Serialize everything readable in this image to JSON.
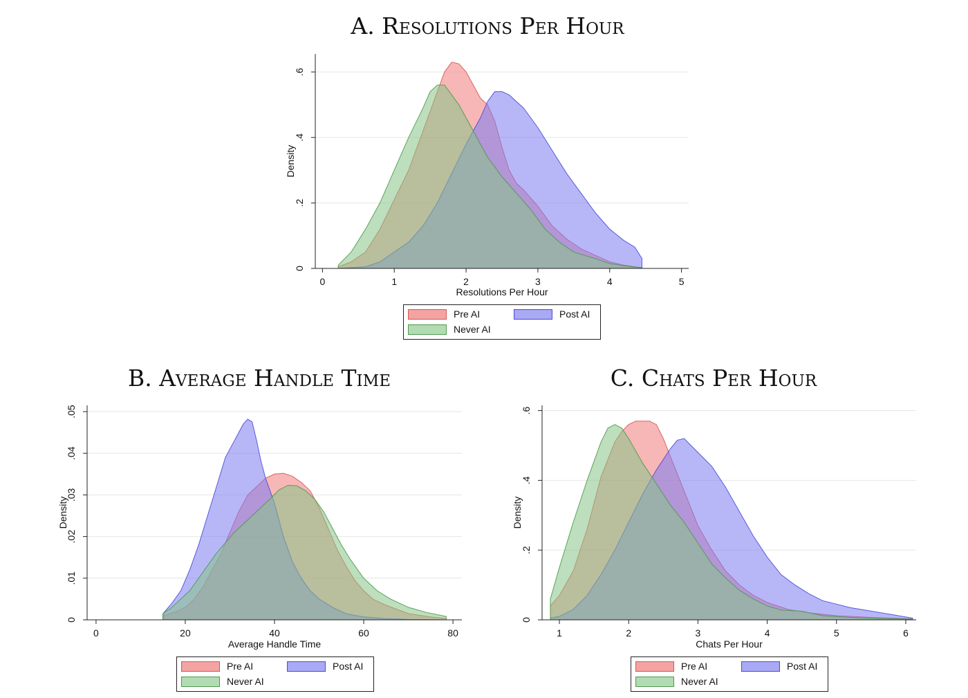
{
  "chart_data": [
    {
      "id": "A",
      "type": "area",
      "title": "A. Resolutions Per Hour",
      "xlabel": "Resolutions Per Hour",
      "ylabel": "Density",
      "xlim": [
        -0.1,
        5.1
      ],
      "ylim": [
        0,
        0.655
      ],
      "xticks": [
        0,
        1,
        2,
        3,
        4,
        5
      ],
      "xtick_labels": [
        "0",
        "1",
        "2",
        "3",
        "4",
        "5"
      ],
      "yticks": [
        0,
        0.2,
        0.4,
        0.6
      ],
      "ytick_labels": [
        "0",
        ".2",
        ".4",
        ".6"
      ],
      "grid": true,
      "legend": [
        "Pre AI",
        "Post AI",
        "Never AI"
      ],
      "legend_position": "bottom",
      "series": [
        {
          "name": "Pre AI",
          "color": "#f07c7c",
          "stroke": "#d9534f",
          "points": [
            [
              0.22,
              0.005
            ],
            [
              0.4,
              0.02
            ],
            [
              0.6,
              0.05
            ],
            [
              0.8,
              0.12
            ],
            [
              1.0,
              0.21
            ],
            [
              1.2,
              0.3
            ],
            [
              1.4,
              0.42
            ],
            [
              1.6,
              0.54
            ],
            [
              1.7,
              0.6
            ],
            [
              1.8,
              0.63
            ],
            [
              1.9,
              0.625
            ],
            [
              2.0,
              0.6
            ],
            [
              2.1,
              0.56
            ],
            [
              2.2,
              0.52
            ],
            [
              2.3,
              0.5
            ],
            [
              2.4,
              0.45
            ],
            [
              2.5,
              0.37
            ],
            [
              2.6,
              0.3
            ],
            [
              2.7,
              0.26
            ],
            [
              2.8,
              0.24
            ],
            [
              3.0,
              0.19
            ],
            [
              3.2,
              0.13
            ],
            [
              3.4,
              0.09
            ],
            [
              3.6,
              0.06
            ],
            [
              3.8,
              0.04
            ],
            [
              4.0,
              0.02
            ],
            [
              4.2,
              0.01
            ],
            [
              4.45,
              0.002
            ]
          ]
        },
        {
          "name": "Post AI",
          "color": "#7b7bf2",
          "stroke": "#4a4ad6",
          "points": [
            [
              0.22,
              0.0
            ],
            [
              0.6,
              0.005
            ],
            [
              0.8,
              0.02
            ],
            [
              1.0,
              0.05
            ],
            [
              1.2,
              0.08
            ],
            [
              1.4,
              0.13
            ],
            [
              1.6,
              0.2
            ],
            [
              1.8,
              0.29
            ],
            [
              2.0,
              0.38
            ],
            [
              2.2,
              0.46
            ],
            [
              2.3,
              0.51
            ],
            [
              2.4,
              0.54
            ],
            [
              2.5,
              0.54
            ],
            [
              2.6,
              0.53
            ],
            [
              2.8,
              0.49
            ],
            [
              3.0,
              0.43
            ],
            [
              3.2,
              0.36
            ],
            [
              3.4,
              0.29
            ],
            [
              3.6,
              0.23
            ],
            [
              3.8,
              0.17
            ],
            [
              4.0,
              0.12
            ],
            [
              4.2,
              0.085
            ],
            [
              4.35,
              0.065
            ],
            [
              4.45,
              0.03
            ]
          ]
        },
        {
          "name": "Never AI",
          "color": "#86c486",
          "stroke": "#4a9a4a",
          "points": [
            [
              0.22,
              0.01
            ],
            [
              0.4,
              0.05
            ],
            [
              0.6,
              0.12
            ],
            [
              0.8,
              0.2
            ],
            [
              1.0,
              0.3
            ],
            [
              1.2,
              0.4
            ],
            [
              1.4,
              0.49
            ],
            [
              1.5,
              0.54
            ],
            [
              1.6,
              0.56
            ],
            [
              1.7,
              0.56
            ],
            [
              1.8,
              0.53
            ],
            [
              1.9,
              0.5
            ],
            [
              2.0,
              0.46
            ],
            [
              2.1,
              0.42
            ],
            [
              2.2,
              0.38
            ],
            [
              2.3,
              0.34
            ],
            [
              2.5,
              0.28
            ],
            [
              2.7,
              0.23
            ],
            [
              2.9,
              0.18
            ],
            [
              3.1,
              0.12
            ],
            [
              3.3,
              0.08
            ],
            [
              3.5,
              0.05
            ],
            [
              3.8,
              0.03
            ],
            [
              4.0,
              0.015
            ],
            [
              4.2,
              0.008
            ],
            [
              4.45,
              0.002
            ]
          ]
        }
      ]
    },
    {
      "id": "B",
      "type": "area",
      "title": "B. Average Handle Time",
      "xlabel": "Average Handle Time",
      "ylabel": "Density",
      "xlim": [
        -2,
        82
      ],
      "ylim": [
        0,
        0.0515
      ],
      "xticks": [
        0,
        20,
        40,
        60,
        80
      ],
      "xtick_labels": [
        "0",
        "20",
        "40",
        "60",
        "80"
      ],
      "yticks": [
        0,
        0.01,
        0.02,
        0.03,
        0.04,
        0.05
      ],
      "ytick_labels": [
        "0",
        ".01",
        ".02",
        ".03",
        ".04",
        ".05"
      ],
      "grid": true,
      "legend": [
        "Pre AI",
        "Post AI",
        "Never AI"
      ],
      "legend_position": "bottom",
      "series": [
        {
          "name": "Pre AI",
          "color": "#f07c7c",
          "stroke": "#d9534f",
          "points": [
            [
              15,
              0.001
            ],
            [
              18,
              0.002
            ],
            [
              20,
              0.003
            ],
            [
              22,
              0.005
            ],
            [
              24,
              0.008
            ],
            [
              26,
              0.012
            ],
            [
              28,
              0.016
            ],
            [
              30,
              0.021
            ],
            [
              32,
              0.026
            ],
            [
              34,
              0.03
            ],
            [
              36,
              0.032
            ],
            [
              38,
              0.034
            ],
            [
              40,
              0.035
            ],
            [
              42,
              0.0352
            ],
            [
              44,
              0.0345
            ],
            [
              46,
              0.033
            ],
            [
              48,
              0.031
            ],
            [
              50,
              0.027
            ],
            [
              52,
              0.022
            ],
            [
              54,
              0.017
            ],
            [
              56,
              0.013
            ],
            [
              58,
              0.0095
            ],
            [
              60,
              0.007
            ],
            [
              62,
              0.005
            ],
            [
              65,
              0.0035
            ],
            [
              70,
              0.0015
            ],
            [
              75,
              0.0007
            ],
            [
              78.5,
              0.0003
            ]
          ]
        },
        {
          "name": "Post AI",
          "color": "#7b7bf2",
          "stroke": "#4a4ad6",
          "points": [
            [
              15,
              0.0015
            ],
            [
              17,
              0.004
            ],
            [
              19,
              0.007
            ],
            [
              21,
              0.012
            ],
            [
              23,
              0.018
            ],
            [
              25,
              0.025
            ],
            [
              27,
              0.032
            ],
            [
              29,
              0.039
            ],
            [
              31,
              0.043
            ],
            [
              33,
              0.047
            ],
            [
              34,
              0.0482
            ],
            [
              35,
              0.0475
            ],
            [
              36,
              0.043
            ],
            [
              37,
              0.038
            ],
            [
              38,
              0.034
            ],
            [
              40,
              0.028
            ],
            [
              42,
              0.02
            ],
            [
              44,
              0.014
            ],
            [
              46,
              0.01
            ],
            [
              48,
              0.007
            ],
            [
              50,
              0.005
            ],
            [
              53,
              0.003
            ],
            [
              56,
              0.0015
            ],
            [
              60,
              0.0007
            ],
            [
              65,
              0.0003
            ],
            [
              70,
              0.0001
            ],
            [
              78.5,
              0.0
            ]
          ]
        },
        {
          "name": "Never AI",
          "color": "#86c486",
          "stroke": "#4a9a4a",
          "points": [
            [
              15,
              0.0015
            ],
            [
              17,
              0.003
            ],
            [
              19,
              0.005
            ],
            [
              21,
              0.007
            ],
            [
              23,
              0.01
            ],
            [
              25,
              0.013
            ],
            [
              27,
              0.016
            ],
            [
              29,
              0.0185
            ],
            [
              31,
              0.021
            ],
            [
              33,
              0.023
            ],
            [
              35,
              0.025
            ],
            [
              37,
              0.027
            ],
            [
              39,
              0.029
            ],
            [
              41,
              0.0312
            ],
            [
              43,
              0.0323
            ],
            [
              45,
              0.0322
            ],
            [
              47,
              0.031
            ],
            [
              49,
              0.029
            ],
            [
              51,
              0.026
            ],
            [
              53,
              0.022
            ],
            [
              55,
              0.018
            ],
            [
              57,
              0.0145
            ],
            [
              60,
              0.01
            ],
            [
              63,
              0.007
            ],
            [
              66,
              0.005
            ],
            [
              70,
              0.003
            ],
            [
              74,
              0.0018
            ],
            [
              78.5,
              0.0008
            ]
          ]
        }
      ]
    },
    {
      "id": "C",
      "type": "area",
      "title": "C. Chats Per Hour",
      "xlabel": "Chats Per Hour",
      "ylabel": "Density",
      "xlim": [
        0.75,
        6.15
      ],
      "ylim": [
        0,
        0.615
      ],
      "xticks": [
        1,
        2,
        3,
        4,
        5,
        6
      ],
      "xtick_labels": [
        "1",
        "2",
        "3",
        "4",
        "5",
        "6"
      ],
      "yticks": [
        0,
        0.2,
        0.4,
        0.6
      ],
      "ytick_labels": [
        "0",
        ".2",
        ".4",
        ".6"
      ],
      "grid": true,
      "legend": [
        "Pre AI",
        "Post AI",
        "Never AI"
      ],
      "legend_position": "bottom",
      "series": [
        {
          "name": "Pre AI",
          "color": "#f07c7c",
          "stroke": "#d9534f",
          "points": [
            [
              0.87,
              0.04
            ],
            [
              1.0,
              0.07
            ],
            [
              1.2,
              0.14
            ],
            [
              1.4,
              0.26
            ],
            [
              1.6,
              0.41
            ],
            [
              1.8,
              0.51
            ],
            [
              1.9,
              0.54
            ],
            [
              2.0,
              0.56
            ],
            [
              2.1,
              0.57
            ],
            [
              2.2,
              0.57
            ],
            [
              2.3,
              0.57
            ],
            [
              2.4,
              0.56
            ],
            [
              2.5,
              0.52
            ],
            [
              2.6,
              0.47
            ],
            [
              2.7,
              0.42
            ],
            [
              2.8,
              0.37
            ],
            [
              2.9,
              0.32
            ],
            [
              3.0,
              0.27
            ],
            [
              3.2,
              0.2
            ],
            [
              3.4,
              0.14
            ],
            [
              3.6,
              0.1
            ],
            [
              3.8,
              0.07
            ],
            [
              4.0,
              0.05
            ],
            [
              4.3,
              0.03
            ],
            [
              4.6,
              0.02
            ],
            [
              5.0,
              0.012
            ],
            [
              5.5,
              0.007
            ],
            [
              6.1,
              0.003
            ]
          ]
        },
        {
          "name": "Post AI",
          "color": "#7b7bf2",
          "stroke": "#4a4ad6",
          "points": [
            [
              0.87,
              0.005
            ],
            [
              1.0,
              0.01
            ],
            [
              1.2,
              0.03
            ],
            [
              1.4,
              0.07
            ],
            [
              1.6,
              0.13
            ],
            [
              1.8,
              0.2
            ],
            [
              2.0,
              0.28
            ],
            [
              2.2,
              0.36
            ],
            [
              2.4,
              0.43
            ],
            [
              2.6,
              0.49
            ],
            [
              2.7,
              0.515
            ],
            [
              2.8,
              0.52
            ],
            [
              2.9,
              0.5
            ],
            [
              3.0,
              0.48
            ],
            [
              3.2,
              0.44
            ],
            [
              3.4,
              0.38
            ],
            [
              3.6,
              0.31
            ],
            [
              3.8,
              0.24
            ],
            [
              4.0,
              0.18
            ],
            [
              4.2,
              0.13
            ],
            [
              4.4,
              0.1
            ],
            [
              4.6,
              0.075
            ],
            [
              4.8,
              0.055
            ],
            [
              5.0,
              0.045
            ],
            [
              5.2,
              0.035
            ],
            [
              5.5,
              0.025
            ],
            [
              5.8,
              0.015
            ],
            [
              6.1,
              0.005
            ]
          ]
        },
        {
          "name": "Never AI",
          "color": "#86c486",
          "stroke": "#4a9a4a",
          "points": [
            [
              0.87,
              0.06
            ],
            [
              1.0,
              0.15
            ],
            [
              1.2,
              0.28
            ],
            [
              1.4,
              0.4
            ],
            [
              1.6,
              0.51
            ],
            [
              1.7,
              0.55
            ],
            [
              1.8,
              0.56
            ],
            [
              1.9,
              0.55
            ],
            [
              2.0,
              0.52
            ],
            [
              2.2,
              0.45
            ],
            [
              2.4,
              0.39
            ],
            [
              2.6,
              0.33
            ],
            [
              2.8,
              0.28
            ],
            [
              3.0,
              0.22
            ],
            [
              3.2,
              0.16
            ],
            [
              3.4,
              0.12
            ],
            [
              3.6,
              0.085
            ],
            [
              3.8,
              0.06
            ],
            [
              4.0,
              0.04
            ],
            [
              4.2,
              0.028
            ],
            [
              4.5,
              0.025
            ],
            [
              4.8,
              0.012
            ],
            [
              5.2,
              0.007
            ],
            [
              5.6,
              0.004
            ],
            [
              6.1,
              0.002
            ]
          ]
        }
      ]
    }
  ]
}
